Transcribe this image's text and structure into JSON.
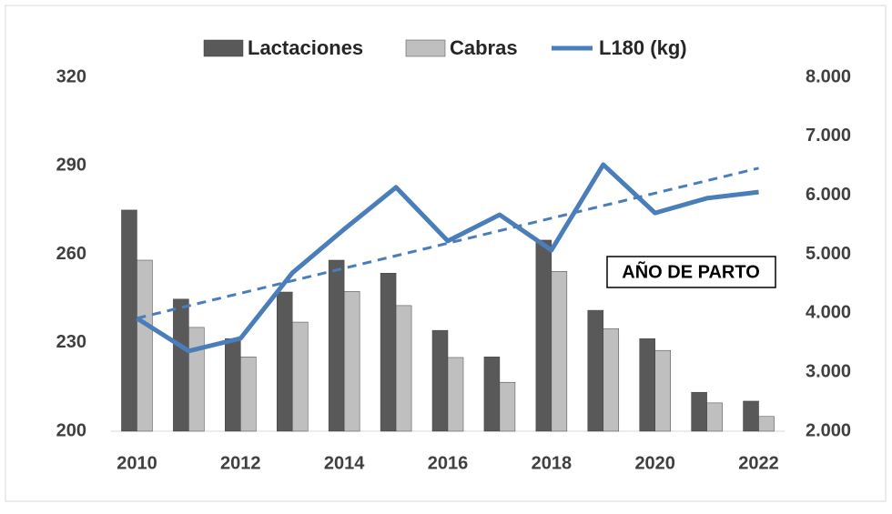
{
  "chart_data": {
    "type": "bar-line",
    "categories": [
      "2010",
      null,
      "2012",
      null,
      "2014",
      null,
      "2016",
      null,
      "2018",
      null,
      "2020",
      null,
      "2022"
    ],
    "series": [
      {
        "name": "Lactaciones",
        "color": "#595959",
        "axis": "y2",
        "type": "bar",
        "values": [
          5750,
          4240,
          3570,
          4360,
          4900,
          4680,
          3710,
          3260,
          5240,
          4050,
          3570,
          2660,
          2510
        ]
      },
      {
        "name": "Cabras",
        "color": "#bfbfbf",
        "axis": "y2",
        "type": "bar",
        "values": [
          4900,
          3760,
          3260,
          3850,
          4370,
          4130,
          3250,
          2830,
          4710,
          3740,
          3370,
          2480,
          2250
        ]
      },
      {
        "name": "L180 (kg)",
        "color": "#4a7ebb",
        "type": "line",
        "values": [
          238.3,
          227.2,
          231.5,
          253.7,
          268.5,
          282.7,
          264.5,
          273.4,
          261.4,
          290.4,
          274.0,
          279.0,
          281.1
        ]
      }
    ],
    "trendline": {
      "color": "#4a7ebb",
      "values": [
        238.3,
        289.2
      ]
    },
    "ylim": [
      200,
      320
    ],
    "yticks": [
      200,
      230,
      260,
      290,
      320
    ],
    "y2lim": [
      2000,
      8000
    ],
    "y2ticks": [
      {
        "value": 2000,
        "label": "2.000"
      },
      {
        "value": 3000,
        "label": "3.000"
      },
      {
        "value": 4000,
        "label": "4.000"
      },
      {
        "value": 5000,
        "label": "5.000"
      },
      {
        "value": 6000,
        "label": "6.000"
      },
      {
        "value": 7000,
        "label": "7.000"
      },
      {
        "value": 8000,
        "label": "8.000"
      }
    ],
    "annotation": "AÑO DE PARTO",
    "legend": "top"
  }
}
